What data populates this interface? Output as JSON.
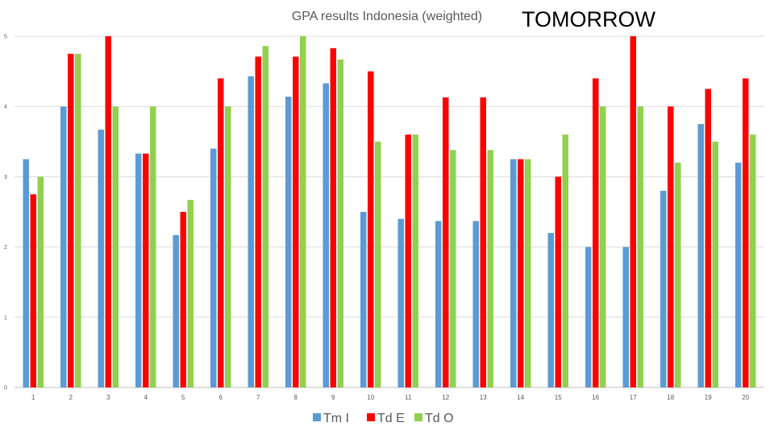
{
  "chart_data": {
    "type": "bar",
    "title": "GPA results Indonesia (weighted)",
    "banner": "TOMORROW",
    "categories": [
      "1",
      "2",
      "3",
      "4",
      "5",
      "6",
      "7",
      "8",
      "9",
      "10",
      "11",
      "12",
      "13",
      "14",
      "15",
      "16",
      "17",
      "18",
      "19",
      "20"
    ],
    "series": [
      {
        "name": "Tm I",
        "color": "#5b9bd5",
        "values": [
          3.25,
          4.0,
          3.67,
          3.33,
          2.17,
          3.4,
          4.43,
          4.14,
          4.33,
          2.5,
          2.4,
          2.37,
          2.37,
          3.25,
          2.2,
          2.0,
          2.0,
          2.8,
          3.75,
          3.2
        ]
      },
      {
        "name": "Td E",
        "color": "#ff0000",
        "values": [
          2.75,
          4.75,
          5.0,
          3.33,
          2.5,
          4.4,
          4.71,
          4.71,
          4.83,
          4.5,
          3.6,
          4.13,
          4.13,
          3.25,
          3.0,
          4.4,
          5.0,
          4.0,
          4.25,
          4.4
        ]
      },
      {
        "name": "Td O",
        "color": "#92d050",
        "values": [
          3.0,
          4.75,
          4.0,
          4.0,
          2.67,
          4.0,
          4.86,
          5.0,
          4.67,
          3.5,
          3.6,
          3.38,
          3.38,
          3.25,
          3.6,
          4.0,
          4.0,
          3.2,
          3.5,
          3.6
        ]
      }
    ],
    "yticks": [
      "0",
      "1",
      "2",
      "3",
      "4",
      "5"
    ],
    "ylim": [
      0,
      5
    ],
    "grid": true,
    "legend": "bottom"
  }
}
